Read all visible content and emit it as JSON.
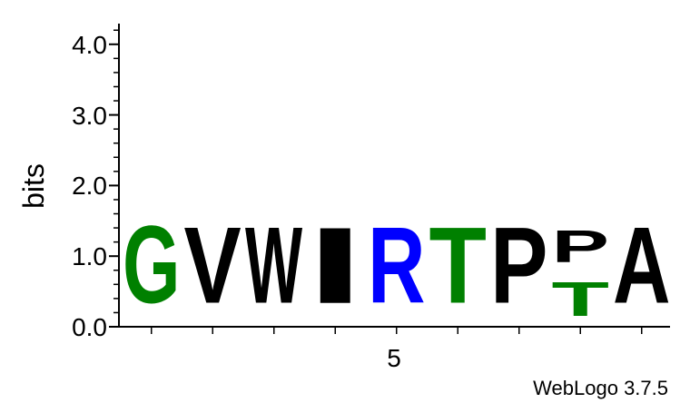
{
  "chart_data": {
    "type": "sequence-logo",
    "ylabel": "bits",
    "ylim": [
      0,
      4.32
    ],
    "y_ticks": [
      "0.0",
      "1.0",
      "2.0",
      "3.0",
      "4.0"
    ],
    "x_tick_label": "5",
    "positions": [
      {
        "stack": [
          {
            "letter": "G",
            "bits": 1.75,
            "color": "#008000"
          }
        ]
      },
      {
        "stack": [
          {
            "letter": "V",
            "bits": 1.72,
            "color": "#000000"
          }
        ]
      },
      {
        "stack": [
          {
            "letter": "W",
            "bits": 1.72,
            "color": "#000000"
          }
        ]
      },
      {
        "stack": [
          {
            "letter": "I",
            "bits": 1.72,
            "color": "#000000"
          }
        ]
      },
      {
        "stack": [
          {
            "letter": "R",
            "bits": 1.72,
            "color": "#0000ff"
          }
        ]
      },
      {
        "stack": [
          {
            "letter": "T",
            "bits": 1.72,
            "color": "#008000"
          }
        ]
      },
      {
        "stack": [
          {
            "letter": "P",
            "bits": 1.72,
            "color": "#000000"
          }
        ]
      },
      {
        "stack": [
          {
            "letter": "T",
            "bits": 0.78,
            "color": "#008000"
          },
          {
            "letter": "P",
            "bits": 0.72,
            "color": "#000000"
          }
        ]
      },
      {
        "stack": [
          {
            "letter": "A",
            "bits": 1.72,
            "color": "#000000"
          }
        ]
      }
    ]
  },
  "credit": "WebLogo 3.7.5"
}
